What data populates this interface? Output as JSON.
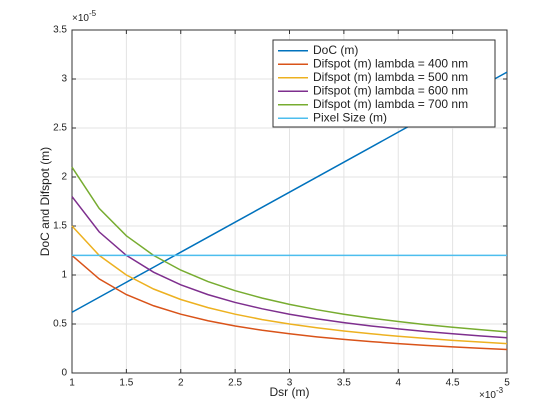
{
  "chart_data": {
    "type": "line",
    "xlabel": "Dsr (m)",
    "ylabel": "DoC and Difspot (m)",
    "xscale": {
      "base": "×10",
      "exp": "-3"
    },
    "yscale": {
      "base": "×10",
      "exp": "-5"
    },
    "x": [
      1,
      1.25,
      1.5,
      1.75,
      2,
      2.25,
      2.5,
      2.75,
      3,
      3.25,
      3.5,
      3.75,
      4,
      4.25,
      4.5,
      4.75,
      5
    ],
    "series": [
      {
        "name": "DoC (m)",
        "color": "#0072bd",
        "values": [
          0.62,
          0.773,
          0.926,
          1.079,
          1.233,
          1.386,
          1.539,
          1.692,
          1.845,
          1.998,
          2.151,
          2.304,
          2.458,
          2.611,
          2.764,
          2.917,
          3.07
        ]
      },
      {
        "name": "Difspot (m) lambda = 400 nm",
        "color": "#d95319",
        "values": [
          1.2,
          0.96,
          0.8,
          0.686,
          0.6,
          0.533,
          0.48,
          0.436,
          0.4,
          0.369,
          0.343,
          0.32,
          0.3,
          0.282,
          0.267,
          0.253,
          0.24
        ]
      },
      {
        "name": "Difspot (m) lambda = 500 nm",
        "color": "#edb120",
        "values": [
          1.5,
          1.2,
          1,
          0.857,
          0.75,
          0.667,
          0.6,
          0.545,
          0.5,
          0.462,
          0.429,
          0.4,
          0.375,
          0.353,
          0.333,
          0.316,
          0.3
        ]
      },
      {
        "name": "Difspot (m) lambda = 600 nm",
        "color": "#7e2f8e",
        "values": [
          1.8,
          1.44,
          1.2,
          1.029,
          0.9,
          0.8,
          0.72,
          0.655,
          0.6,
          0.554,
          0.514,
          0.48,
          0.45,
          0.424,
          0.4,
          0.379,
          0.36
        ]
      },
      {
        "name": "Difspot (m) lambda = 700 nm",
        "color": "#77ac30",
        "values": [
          2.1,
          1.68,
          1.4,
          1.2,
          1.05,
          0.933,
          0.84,
          0.764,
          0.7,
          0.646,
          0.6,
          0.56,
          0.525,
          0.494,
          0.467,
          0.442,
          0.42
        ]
      },
      {
        "name": "Pixel Size (m)",
        "color": "#4dbeee",
        "values": [
          1.2,
          1.2,
          1.2,
          1.2,
          1.2,
          1.2,
          1.2,
          1.2,
          1.2,
          1.2,
          1.2,
          1.2,
          1.2,
          1.2,
          1.2,
          1.2,
          1.2
        ]
      }
    ],
    "xlim": [
      1,
      5
    ],
    "ylim": [
      0,
      3.5
    ],
    "xticks": [
      1,
      1.5,
      2,
      2.5,
      3,
      3.5,
      4,
      4.5,
      5
    ],
    "yticks": [
      0,
      0.5,
      1,
      1.5,
      2,
      2.5,
      3,
      3.5
    ],
    "grid": true,
    "legend": "top-right"
  }
}
